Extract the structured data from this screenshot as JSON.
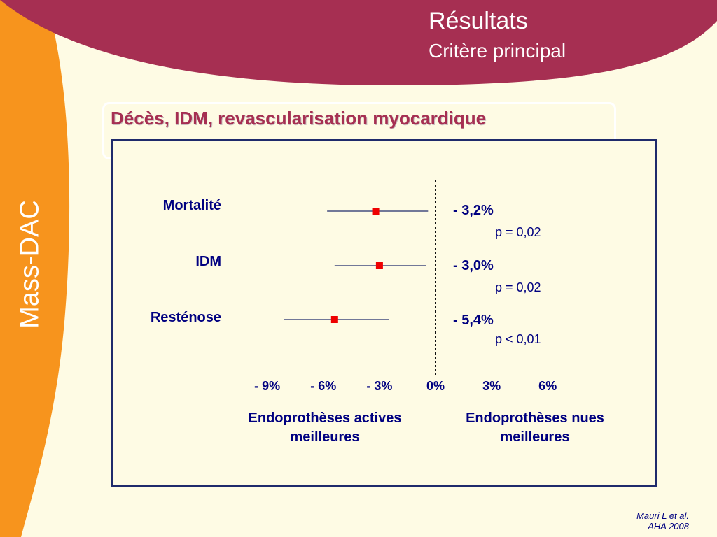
{
  "header": {
    "title": "Résultats",
    "subtitle": "Critère principal"
  },
  "sidebar": {
    "label": "Mass-DAC"
  },
  "chart_heading": "Décès, IDM, revascularisation myocardique",
  "colors": {
    "banner": "#a62f52",
    "sidebar": "#f7941d",
    "background": "#fefbe4",
    "frame": "#1f2a6b",
    "marker": "#ee0000",
    "text": "#000080"
  },
  "chart_data": {
    "type": "forest",
    "x_ticks": [
      "- 9%",
      "- 6%",
      "- 3%",
      "0%",
      "3%",
      "6%"
    ],
    "x_tick_values": [
      -9,
      -6,
      -3,
      0,
      3,
      6
    ],
    "reference_line": 0,
    "rows": [
      {
        "label": "Mortalité",
        "effect": -3.2,
        "ci": [
          -5.8,
          -0.4
        ],
        "effect_text": "- 3,2%",
        "p_text": "p = 0,02"
      },
      {
        "label": "IDM",
        "effect": -3.0,
        "ci": [
          -5.4,
          -0.5
        ],
        "effect_text": "- 3,0%",
        "p_text": "p = 0,02"
      },
      {
        "label": "Resténose",
        "effect": -5.4,
        "ci": [
          -8.1,
          -2.5
        ],
        "effect_text": "- 5,4%",
        "p_text": "p < 0,01"
      }
    ],
    "favours_left": "Endoprothèses actives meilleures",
    "favours_right": "Endoprothèses nues meilleures"
  },
  "citation": {
    "line1": "Mauri L et al.",
    "line2": "AHA 2008"
  }
}
